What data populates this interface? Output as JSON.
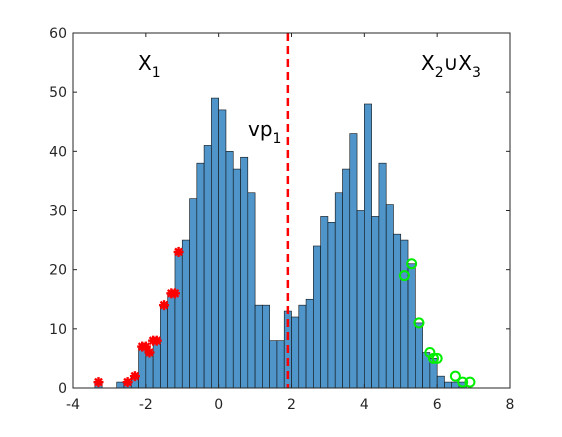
{
  "colors": {
    "bar_fill": "#4f95c9",
    "bar_edge": "#111111",
    "axis": "#262626",
    "vline": "#ff0000",
    "red_marker": "#ff0000",
    "green_marker": "#00ee00"
  },
  "chart_data": {
    "type": "bar",
    "subtype": "histogram",
    "title": "",
    "xlabel": "",
    "ylabel": "",
    "xlim": [
      -4,
      8
    ],
    "ylim": [
      0,
      60
    ],
    "grid": false,
    "xticks": [
      -4,
      -2,
      0,
      2,
      4,
      6,
      8
    ],
    "yticks": [
      0,
      10,
      20,
      30,
      40,
      50,
      60
    ],
    "bin_width": 0.2,
    "bins_start": [
      -3.4,
      -3.2,
      -3.0,
      -2.8,
      -2.6,
      -2.4,
      -2.2,
      -2.0,
      -1.8,
      -1.6,
      -1.4,
      -1.2,
      -1.0,
      -0.8,
      -0.6,
      -0.4,
      -0.2,
      0.0,
      0.2,
      0.4,
      0.6,
      0.8,
      1.0,
      1.2,
      1.4,
      1.6,
      1.8,
      2.0,
      2.2,
      2.4,
      2.6,
      2.8,
      3.0,
      3.2,
      3.4,
      3.6,
      3.8,
      4.0,
      4.2,
      4.4,
      4.6,
      4.8,
      5.0,
      5.2,
      5.4,
      5.6,
      5.8,
      6.0,
      6.2,
      6.4,
      6.6,
      6.8
    ],
    "counts": [
      1,
      0,
      0,
      1,
      1,
      2,
      7,
      6,
      8,
      14,
      16,
      23,
      25,
      32,
      38,
      41,
      49,
      47,
      40,
      37,
      39,
      33,
      14,
      14,
      8,
      8,
      13,
      12,
      14,
      15,
      24,
      29,
      28,
      33,
      37,
      43,
      30,
      48,
      29,
      38,
      31,
      26,
      25,
      21,
      11,
      6,
      5,
      2,
      1,
      1,
      1,
      0
    ],
    "vline": {
      "x": 1.9,
      "style": "dashed",
      "label": "vp",
      "label_sub": "1"
    },
    "annotations": [
      {
        "text": "X",
        "sub": "1"
      },
      {
        "text": "X",
        "sub": "2",
        "op": "∪",
        "text2": "X",
        "sub2": "3"
      }
    ],
    "marker_series": [
      {
        "color": "red",
        "shape": "star",
        "points": [
          [
            -3.3,
            1
          ],
          [
            -2.5,
            1
          ],
          [
            -2.3,
            2
          ],
          [
            -2.1,
            7
          ],
          [
            -2.0,
            7
          ],
          [
            -1.9,
            6
          ],
          [
            -1.8,
            8
          ],
          [
            -1.7,
            8
          ],
          [
            -1.5,
            14
          ],
          [
            -1.3,
            16
          ],
          [
            -1.2,
            16
          ],
          [
            -1.1,
            23
          ]
        ]
      },
      {
        "color": "green",
        "shape": "circle",
        "points": [
          [
            5.1,
            19
          ],
          [
            5.3,
            21
          ],
          [
            5.5,
            11
          ],
          [
            5.8,
            6
          ],
          [
            5.9,
            5
          ],
          [
            6.0,
            5
          ],
          [
            6.5,
            2
          ],
          [
            6.7,
            1
          ],
          [
            6.9,
            1
          ]
        ]
      }
    ]
  }
}
